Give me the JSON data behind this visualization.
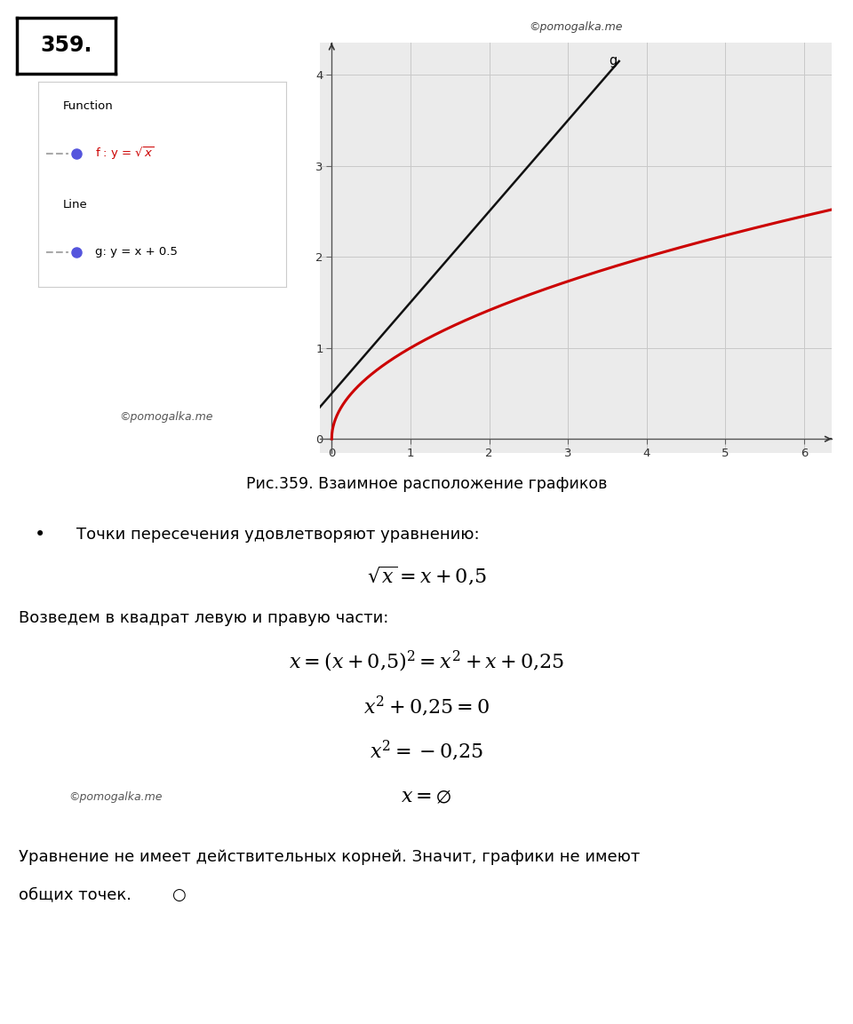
{
  "background_color": "#ffffff",
  "watermark_top": "©pomogalka.me",
  "watermark_mid": "©pomogalka.me",
  "watermark_bottom": "©pomogalka.me",
  "number_label": "359.",
  "graph_label_g": "g",
  "xlim": [
    -0.15,
    6.35
  ],
  "ylim": [
    -0.15,
    4.35
  ],
  "xticks": [
    0,
    1,
    2,
    3,
    4,
    5,
    6
  ],
  "yticks": [
    0,
    1,
    2,
    3,
    4
  ],
  "sqrt_color": "#cc0000",
  "line_color": "#111111",
  "grid_color": "#c8c8c8",
  "graph_bg": "#ebebeb",
  "legend_function_label": "Function",
  "legend_f_label": "f : y = √x",
  "legend_line_label": "Line",
  "legend_g_label": "g: y = x + 0.5",
  "legend_dot_color": "#5555dd",
  "legend_line_color": "#aaaaaa",
  "fig_caption": "Рис.359. Взаимное расположение графиков",
  "bullet1_text": "Точки пересечения удовлетворяют уравнению:",
  "text2": "Возведем в квадрат левую и правую части:",
  "final_text1": "Уравнение не имеет действительных корней. Значит, графики не имеют",
  "final_text2": "общих точек."
}
